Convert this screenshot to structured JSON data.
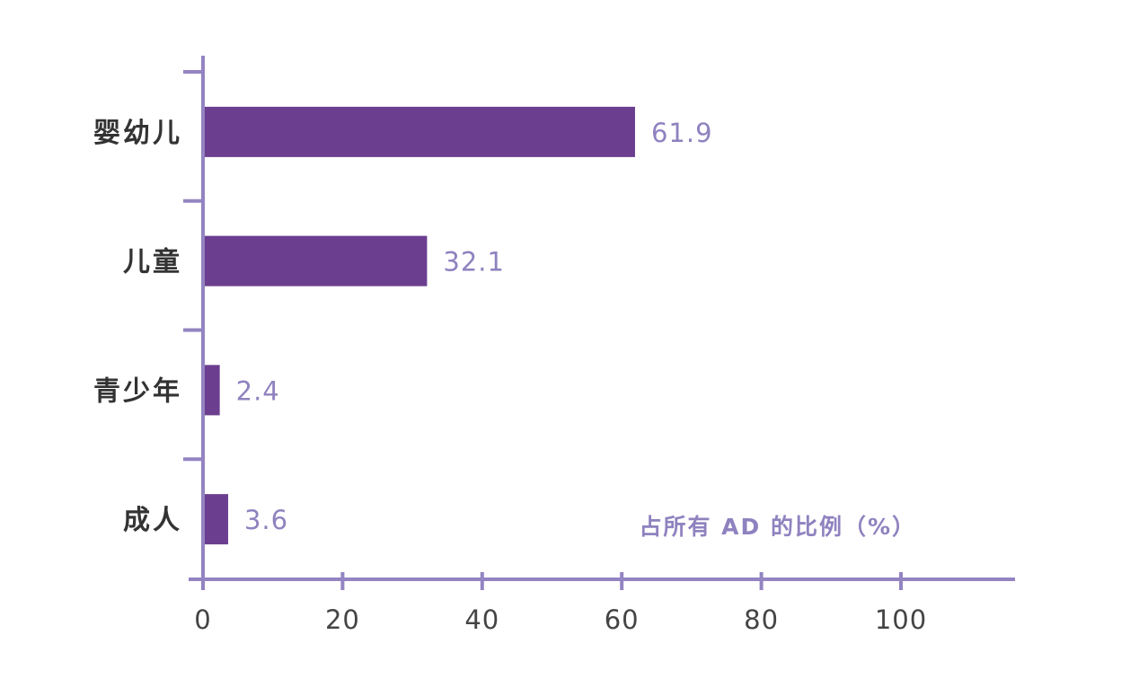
{
  "chart_data": {
    "type": "bar",
    "orientation": "horizontal",
    "categories": [
      "婴幼儿",
      "儿童",
      "青少年",
      "成人"
    ],
    "values": [
      61.9,
      32.1,
      2.4,
      3.6
    ],
    "value_labels": [
      "61.9",
      "32.1",
      "2.4",
      "3.6"
    ],
    "xlabel": "占所有 AD 的比例（%）",
    "ylabel": "",
    "xlim": [
      0,
      115
    ],
    "xticks": [
      0,
      20,
      40,
      60,
      80,
      100
    ],
    "xtick_labels": [
      "0",
      "20",
      "40",
      "60",
      "80",
      "100"
    ],
    "grid": false,
    "legend": "none"
  },
  "colors": {
    "bar": "#6b3e8f",
    "axis": "#9384c2",
    "value_label": "#8f82bf",
    "category_label": "#333333",
    "tick_label": "#444444"
  }
}
